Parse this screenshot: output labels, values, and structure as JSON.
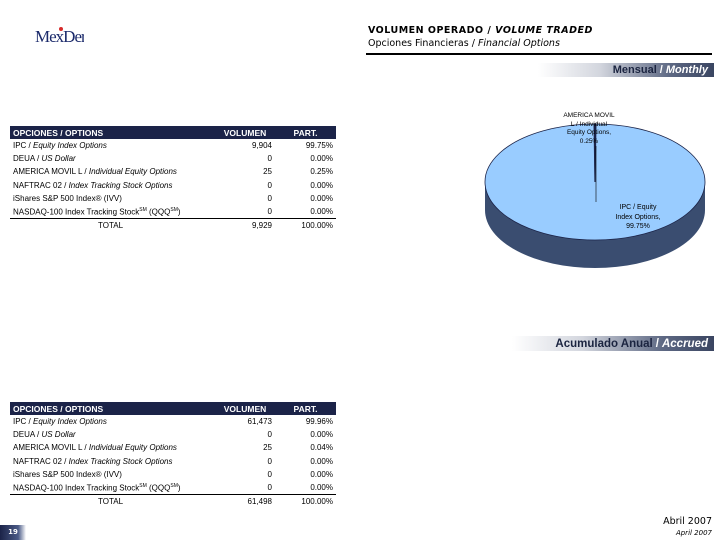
{
  "logo": {
    "text": "MexDer"
  },
  "header": {
    "title_es": "VOLUMEN OPERADO",
    "title_sep": " / ",
    "title_en": "VOLUME TRADED",
    "subtitle_es": "Opciones Financieras",
    "subtitle_sep": " / ",
    "subtitle_en": "Financial Options"
  },
  "monthly": {
    "band_es": "Mensual",
    "band_sep": "/",
    "band_en": "Monthly",
    "table": {
      "col_options": "OPCIONES / OPTIONS",
      "col_volume": "VOLUMEN",
      "col_part": "PART.",
      "rows": [
        {
          "name": "IPC / ",
          "name_it": "Equity Index Options",
          "name_tail": "",
          "volume": "9,904",
          "part": "99.75%"
        },
        {
          "name": "DEUA / ",
          "name_it": "US Dollar",
          "name_tail": "",
          "volume": "0",
          "part": "0.00%"
        },
        {
          "name": "AMERICA MOVIL L / ",
          "name_it": "Individual Equity Options",
          "name_tail": "",
          "volume": "25",
          "part": "0.25%"
        },
        {
          "name": "NAFTRAC 02 / ",
          "name_it": "Index Tracking Stock Options",
          "name_tail": "",
          "volume": "0",
          "part": "0.00%"
        },
        {
          "name": "iShares S&P 500 Index® (IVV)",
          "name_it": "",
          "name_tail": "",
          "volume": "0",
          "part": "0.00%"
        },
        {
          "name": "NASDAQ-100 Index Tracking Stock",
          "name_it": "",
          "name_tail": "(QQQ",
          "volume": "0",
          "part": "0.00%"
        }
      ],
      "sm": "SM",
      "close_paren": ")",
      "total_label": "TOTAL",
      "total_volume": "9,929",
      "total_part": "100.00%"
    }
  },
  "accrued": {
    "band_es": "Acumulado Anual",
    "band_sep": "/",
    "band_en": "Accrued",
    "table": {
      "col_options": "OPCIONES / OPTIONS",
      "col_volume": "VOLUMEN",
      "col_part": "PART.",
      "rows": [
        {
          "name": "IPC / ",
          "name_it": "Equity Index Options",
          "name_tail": "",
          "volume": "61,473",
          "part": "99.96%"
        },
        {
          "name": "DEUA / ",
          "name_it": "US Dollar",
          "name_tail": "",
          "volume": "0",
          "part": "0.00%"
        },
        {
          "name": "AMERICA MOVIL L / ",
          "name_it": "Individual Equity Options",
          "name_tail": "",
          "volume": "25",
          "part": "0.04%"
        },
        {
          "name": "NAFTRAC 02 / ",
          "name_it": "Index Tracking Stock Options",
          "name_tail": "",
          "volume": "0",
          "part": "0.00%"
        },
        {
          "name": "iShares S&P 500 Index® (IVV)",
          "name_it": "",
          "name_tail": "",
          "volume": "0",
          "part": "0.00%"
        },
        {
          "name": "NASDAQ-100 Index Tracking Stock",
          "name_it": "",
          "name_tail": "(QQQ",
          "volume": "0",
          "part": "0.00%"
        }
      ],
      "sm": "SM",
      "close_paren": ")",
      "total_label": "TOTAL",
      "total_volume": "61,498",
      "total_part": "100.00%"
    }
  },
  "chart_data": {
    "type": "pie",
    "title": "",
    "slices": [
      {
        "label": "IPC / Equity Index Options",
        "value": 99.75
      },
      {
        "label": "AMERICA MOVIL L / Individual Equity Options",
        "value": 0.25
      }
    ],
    "label_ipc_lines": [
      "IPC / Equity",
      "Index Options,",
      "99.75%"
    ],
    "label_amx_lines": [
      "AMERICA MOVIL",
      "L / Individual",
      "Equity Options,",
      "0.25%"
    ],
    "colors": {
      "ipc": "#99ccff",
      "amx": "#1b2348",
      "side": "#3a4d70"
    }
  },
  "footer": {
    "page": "19",
    "date_es": "Abril 2007",
    "date_en": "April 2007"
  }
}
